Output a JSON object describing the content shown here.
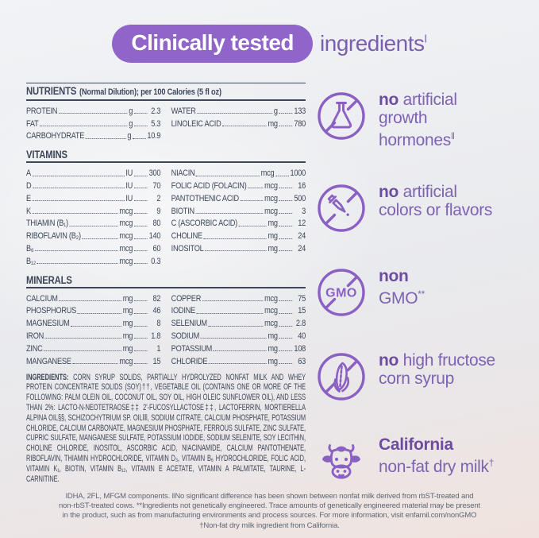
{
  "colors": {
    "brand_purple": "#9065c9",
    "claim_purple": "#7e63b2",
    "ink_navy": "#3d4759"
  },
  "header": {
    "badge": "Clinically tested",
    "rest": "ingredients",
    "rest_sup": "ǀ"
  },
  "nutrients": {
    "title": "NUTRIENTS",
    "subtitle": "(Normal Dilution); per 100 Calories (5 fl oz)",
    "left": [
      {
        "label": "PROTEIN",
        "unit": "g",
        "value": "2.3"
      },
      {
        "label": "FAT",
        "unit": "g",
        "value": "5.3"
      },
      {
        "label": "CARBOHYDRATE",
        "unit": "g",
        "value": "10.9"
      }
    ],
    "right": [
      {
        "label": "WATER",
        "unit": "g",
        "value": "133"
      },
      {
        "label": "LINOLEIC ACID",
        "unit": "mg",
        "value": "780"
      }
    ]
  },
  "vitamins": {
    "title": "VITAMINS",
    "left": [
      {
        "label": "A",
        "unit": "IU",
        "value": "300"
      },
      {
        "label": "D",
        "unit": "IU",
        "value": "70"
      },
      {
        "label": "E",
        "unit": "IU",
        "value": "2"
      },
      {
        "label": "K",
        "unit": "mcg",
        "value": "9"
      },
      {
        "label": "THIAMIN (B₁)",
        "unit": "mcg",
        "value": "80"
      },
      {
        "label": "RIBOFLAVIN (B₂)",
        "unit": "mcg",
        "value": "140"
      },
      {
        "label": "B₆",
        "unit": "mcg",
        "value": "60"
      },
      {
        "label": "B₁₂",
        "unit": "mcg",
        "value": "0.3"
      }
    ],
    "right": [
      {
        "label": "NIACIN",
        "unit": "mcg",
        "value": "1000"
      },
      {
        "label": "FOLIC ACID (FOLACIN)",
        "unit": "mcg",
        "value": "16"
      },
      {
        "label": "PANTOTHENIC ACID",
        "unit": "mcg",
        "value": "500"
      },
      {
        "label": "BIOTIN",
        "unit": "mcg",
        "value": "3"
      },
      {
        "label": "C (ASCORBIC ACID)",
        "unit": "mg",
        "value": "12"
      },
      {
        "label": "CHOLINE",
        "unit": "mg",
        "value": "24"
      },
      {
        "label": "INOSITOL",
        "unit": "mg",
        "value": "24"
      }
    ]
  },
  "minerals": {
    "title": "MINERALS",
    "left": [
      {
        "label": "CALCIUM",
        "unit": "mg",
        "value": "82"
      },
      {
        "label": "PHOSPHORUS",
        "unit": "mg",
        "value": "46"
      },
      {
        "label": "MAGNESIUM",
        "unit": "mg",
        "value": "8"
      },
      {
        "label": "IRON",
        "unit": "mg",
        "value": "1.8"
      },
      {
        "label": "ZINC",
        "unit": "mg",
        "value": "1"
      },
      {
        "label": "MANGANESE",
        "unit": "mcg",
        "value": "15"
      }
    ],
    "right": [
      {
        "label": "COPPER",
        "unit": "mcg",
        "value": "75"
      },
      {
        "label": "IODINE",
        "unit": "mcg",
        "value": "15"
      },
      {
        "label": "SELENIUM",
        "unit": "mcg",
        "value": "2.8"
      },
      {
        "label": "SODIUM",
        "unit": "mg",
        "value": "40"
      },
      {
        "label": "POTASSIUM",
        "unit": "mg",
        "value": "108"
      },
      {
        "label": "CHLORIDE",
        "unit": "mg",
        "value": "63"
      }
    ]
  },
  "ingredients": {
    "label": "INGREDIENTS:",
    "text": "CORN SYRUP SOLIDS, PARTIALLY HYDROLYZED NONFAT MILK AND WHEY PROTEIN CONCENTRATE SOLIDS (SOY)††, VEGETABLE OIL (CONTAINS ONE OR MORE OF THE FOLLOWING: PALM OLEIN OIL, COCONUT OIL, SOY OIL, HIGH OLEIC SUNFLOWER OIL), AND LESS THAN 2%: LACTO-N-NEOTETRAOSE‡‡ 2'-FUCOSYLLACTOSE‡‡, LACTOFERRIN, MORTIERELLA ALPINA OIL§§, SCHIZOCHYTRIUM SP. OIL‖‖, SODIUM CITRATE, CALCIUM PHOSPHATE, POTASSIUM CHLORIDE, CALCIUM CARBONATE, MAGNESIUM PHOSPHATE, FERROUS SULFATE, ZINC SULFATE, CUPRIC SULFATE, MANGANESE SULFATE, POTASSIUM IODIDE, SODIUM SELENITE, SOY LECITHIN, CHOLINE CHLORIDE, INOSITOL, ASCORBIC ACID, NIACINAMIDE, CALCIUM PANTOTHENATE, RIBOFLAVIN, THIAMIN HYDROCHLORIDE, VITAMIN D₃, VITAMIN B₆ HYDROCHLORIDE, FOLIC ACID, VITAMIN K₁, BIOTIN, VITAMIN B₁₂, VITAMIN E ACETATE, VITAMIN A PALMITATE, TAURINE, L-CARNITINE."
  },
  "claims": {
    "items": [
      {
        "icon": "no-growth-hormones",
        "bold": "no",
        "text": " artificial\ngrowth\nhormones",
        "sup": "ǁ"
      },
      {
        "icon": "no-artificial-colors",
        "bold": "no",
        "text": " artificial\ncolors or flavors",
        "sup": ""
      },
      {
        "icon": "non-gmo",
        "bold": "non",
        "text": "\nGMO",
        "sup": "**"
      },
      {
        "icon": "no-hfcs",
        "bold": "no",
        "text": " high fructose\ncorn syrup",
        "sup": ""
      },
      {
        "icon": "california-cow",
        "bold": "California",
        "text": "\nnon-fat dry milk",
        "sup": "†"
      }
    ]
  },
  "footnotes": {
    "text": "ǀDHA, 2FL, MFGM components. ǁNo significant difference has been shown between nonfat milk derived from rbST-treated and\nnon-rbST-treated cows. **Ingredients not genetically engineered. Trace amounts of genetically engineered material may be present\nin the product, such as from manufacturing environments and process sources. For more information, visit enfamil.com/nonGMO\n†Non-fat dry milk ingredient from California."
  }
}
